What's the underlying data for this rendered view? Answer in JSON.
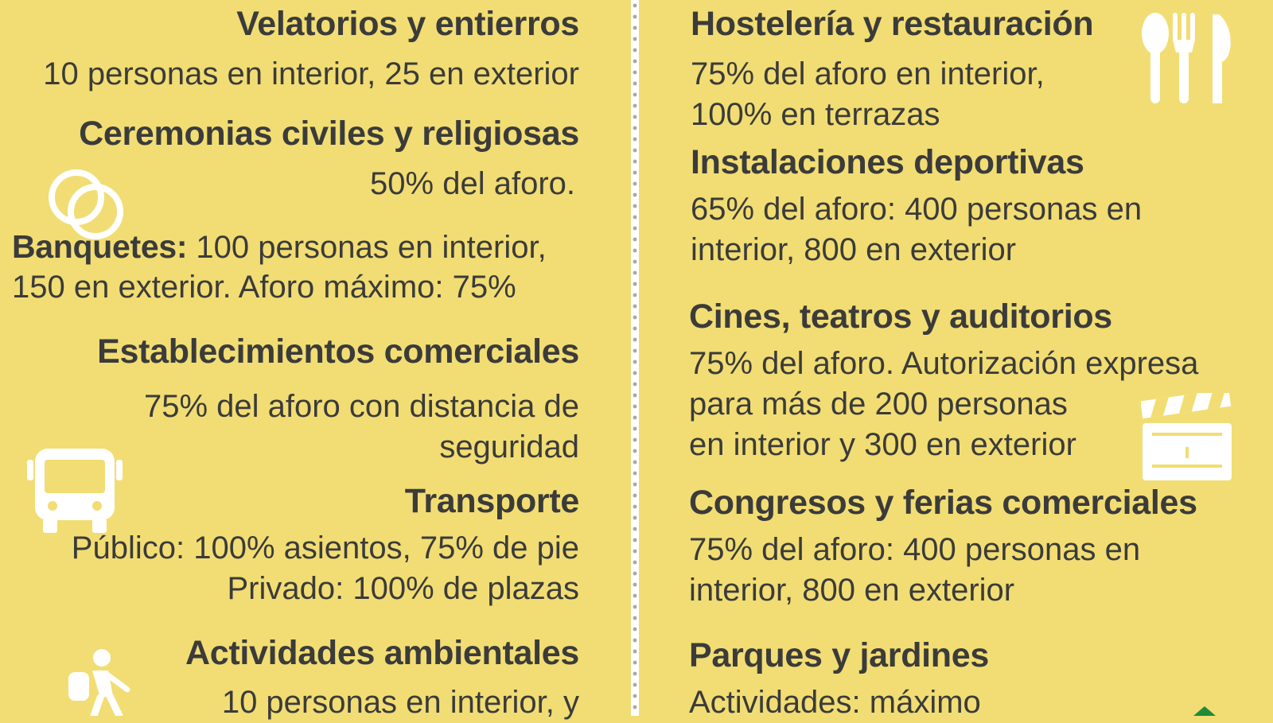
{
  "left": {
    "velatorios": {
      "title": "Velatorios y entierros",
      "line1": "10 personas en interior, 25 en exterior"
    },
    "ceremonias": {
      "title": "Ceremonias civiles y religiosas",
      "line1": "50% del aforo."
    },
    "banquetes": {
      "label": "Banquetes:",
      "line1": "100 personas en interior,",
      "line2": "150 en exterior. Aforo máximo: 75%"
    },
    "comercio": {
      "title": "Establecimientos comerciales",
      "line1": "75% del aforo con distancia de",
      "line2": "seguridad"
    },
    "transporte": {
      "title": "Transporte",
      "line1": "Público: 100% asientos, 75% de pie",
      "line2": "Privado: 100% de plazas"
    },
    "ambientales": {
      "title": "Actividades ambientales",
      "line1": "10 personas en interior, y"
    }
  },
  "right": {
    "hosteleria": {
      "title": "Hostelería y restauración",
      "line1": "75% del aforo en interior,",
      "line2": "100% en terrazas"
    },
    "deportivas": {
      "title": "Instalaciones deportivas",
      "line1": "65% del aforo: 400 personas en",
      "line2": "interior, 800 en exterior"
    },
    "cines": {
      "title": "Cines, teatros y auditorios",
      "line1": "75% del aforo. Autorización expresa",
      "line2": "para más de 200 personas",
      "line3": "en interior y 300 en exterior"
    },
    "congresos": {
      "title": "Congresos y ferias comerciales",
      "line1": "75% del aforo: 400 personas en",
      "line2": "interior, 800 en exterior"
    },
    "parques": {
      "title": "Parques y jardines",
      "line1": "Actividades: máximo"
    }
  },
  "icons": {
    "rings": "rings-icon",
    "bus": "bus-icon",
    "hiker": "hiker-icon",
    "cutlery": "cutlery-icon",
    "clapperboard": "clapperboard-icon",
    "tree": "tree-icon"
  },
  "colors": {
    "background": "#f1dd73",
    "text": "#3b3b3b",
    "icon": "#ffffff",
    "accent_green": "#1e8a3a"
  }
}
